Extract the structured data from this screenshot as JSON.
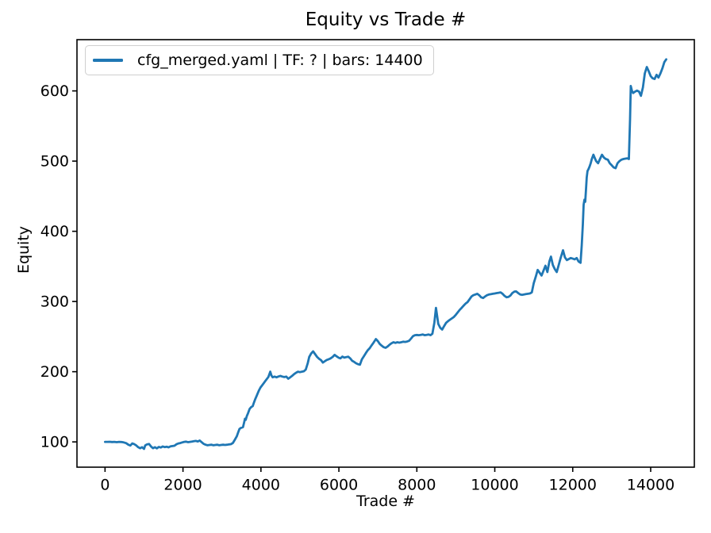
{
  "figure": {
    "title": "Equity vs Trade #",
    "background": "#ffffff"
  },
  "legend": {
    "label": "cfg_merged.yaml | TF: ? | bars: 14400",
    "line_color": "#1f77b4"
  },
  "chart_data": {
    "type": "line",
    "title": "Equity vs Trade #",
    "xlabel": "Trade #",
    "ylabel": "Equity",
    "x_ticks": [
      0,
      2000,
      4000,
      6000,
      8000,
      10000,
      12000,
      14000
    ],
    "y_ticks": [
      100,
      200,
      300,
      400,
      500,
      600
    ],
    "xlim": [
      -720,
      15120
    ],
    "ylim": [
      64,
      673
    ],
    "grid": false,
    "legend_position": "upper left",
    "line_color": "#1f77b4",
    "frame_color": "#000000",
    "series": [
      {
        "name": "cfg_merged.yaml | TF: ? | bars: 14400",
        "points": [
          [
            0,
            100
          ],
          [
            60,
            100
          ],
          [
            120,
            100.2
          ],
          [
            180,
            99.8
          ],
          [
            240,
            100
          ],
          [
            300,
            99.6
          ],
          [
            360,
            100
          ],
          [
            420,
            99.8
          ],
          [
            480,
            99.2
          ],
          [
            540,
            98.2
          ],
          [
            600,
            96
          ],
          [
            650,
            94.8
          ],
          [
            700,
            97.8
          ],
          [
            750,
            96.8
          ],
          [
            800,
            95
          ],
          [
            850,
            92.5
          ],
          [
            900,
            91
          ],
          [
            950,
            92.5
          ],
          [
            1000,
            90
          ],
          [
            1030,
            95
          ],
          [
            1080,
            96.5
          ],
          [
            1130,
            97
          ],
          [
            1180,
            93.5
          ],
          [
            1230,
            91
          ],
          [
            1280,
            92.5
          ],
          [
            1330,
            90.8
          ],
          [
            1380,
            92.8
          ],
          [
            1430,
            92
          ],
          [
            1480,
            93.5
          ],
          [
            1530,
            92.6
          ],
          [
            1580,
            93.2
          ],
          [
            1630,
            92.2
          ],
          [
            1680,
            93.6
          ],
          [
            1730,
            94
          ],
          [
            1780,
            94.5
          ],
          [
            1830,
            96.5
          ],
          [
            1880,
            97.8
          ],
          [
            1930,
            98.3
          ],
          [
            1980,
            99.2
          ],
          [
            2030,
            100
          ],
          [
            2080,
            100.4
          ],
          [
            2130,
            99.6
          ],
          [
            2180,
            100
          ],
          [
            2230,
            100.5
          ],
          [
            2280,
            101
          ],
          [
            2330,
            101.4
          ],
          [
            2380,
            100.6
          ],
          [
            2430,
            102
          ],
          [
            2480,
            99.5
          ],
          [
            2530,
            97.2
          ],
          [
            2580,
            96
          ],
          [
            2630,
            95.2
          ],
          [
            2680,
            95.6
          ],
          [
            2730,
            96
          ],
          [
            2780,
            95.2
          ],
          [
            2830,
            95.6
          ],
          [
            2880,
            96
          ],
          [
            2930,
            95.2
          ],
          [
            2980,
            95.6
          ],
          [
            3030,
            96
          ],
          [
            3080,
            95.6
          ],
          [
            3130,
            96
          ],
          [
            3180,
            96.4
          ],
          [
            3230,
            96.8
          ],
          [
            3280,
            98.5
          ],
          [
            3330,
            103
          ],
          [
            3380,
            108
          ],
          [
            3420,
            114
          ],
          [
            3450,
            118.5
          ],
          [
            3490,
            120
          ],
          [
            3540,
            121
          ],
          [
            3570,
            128
          ],
          [
            3590,
            133
          ],
          [
            3610,
            131.5
          ],
          [
            3640,
            137
          ],
          [
            3670,
            141
          ],
          [
            3710,
            147
          ],
          [
            3750,
            149.5
          ],
          [
            3790,
            151
          ],
          [
            3820,
            156
          ],
          [
            3850,
            160.5
          ],
          [
            3890,
            165.5
          ],
          [
            3920,
            169.5
          ],
          [
            3950,
            173.5
          ],
          [
            3990,
            177.5
          ],
          [
            4030,
            180.5
          ],
          [
            4070,
            183.5
          ],
          [
            4110,
            186.5
          ],
          [
            4150,
            189.5
          ],
          [
            4190,
            192.5
          ],
          [
            4240,
            200
          ],
          [
            4270,
            194.5
          ],
          [
            4300,
            192
          ],
          [
            4350,
            193
          ],
          [
            4400,
            192
          ],
          [
            4450,
            193.2
          ],
          [
            4500,
            194
          ],
          [
            4550,
            193
          ],
          [
            4600,
            192.4
          ],
          [
            4650,
            193
          ],
          [
            4700,
            190
          ],
          [
            4750,
            192
          ],
          [
            4800,
            194
          ],
          [
            4850,
            196.5
          ],
          [
            4900,
            198.5
          ],
          [
            4950,
            200
          ],
          [
            5000,
            199.4
          ],
          [
            5050,
            200
          ],
          [
            5100,
            200.6
          ],
          [
            5150,
            203
          ],
          [
            5200,
            212
          ],
          [
            5240,
            221
          ],
          [
            5290,
            226
          ],
          [
            5340,
            229
          ],
          [
            5390,
            225
          ],
          [
            5440,
            221
          ],
          [
            5490,
            218.5
          ],
          [
            5540,
            216.5
          ],
          [
            5590,
            213
          ],
          [
            5640,
            215
          ],
          [
            5690,
            216.8
          ],
          [
            5740,
            217.8
          ],
          [
            5790,
            219
          ],
          [
            5840,
            221
          ],
          [
            5890,
            224
          ],
          [
            5940,
            222
          ],
          [
            5990,
            220
          ],
          [
            6040,
            219
          ],
          [
            6090,
            221.5
          ],
          [
            6140,
            220
          ],
          [
            6190,
            220.8
          ],
          [
            6240,
            221.4
          ],
          [
            6290,
            219
          ],
          [
            6340,
            215.5
          ],
          [
            6390,
            214
          ],
          [
            6440,
            212
          ],
          [
            6490,
            210.8
          ],
          [
            6540,
            210
          ],
          [
            6590,
            217.5
          ],
          [
            6640,
            222
          ],
          [
            6690,
            226.5
          ],
          [
            6740,
            230.5
          ],
          [
            6790,
            233.5
          ],
          [
            6840,
            237.5
          ],
          [
            6890,
            241.5
          ],
          [
            6950,
            246.5
          ],
          [
            7000,
            243.5
          ],
          [
            7050,
            239.5
          ],
          [
            7100,
            237
          ],
          [
            7150,
            235
          ],
          [
            7200,
            234
          ],
          [
            7250,
            236
          ],
          [
            7300,
            238.5
          ],
          [
            7350,
            240.5
          ],
          [
            7400,
            242
          ],
          [
            7450,
            241
          ],
          [
            7500,
            242
          ],
          [
            7550,
            241.4
          ],
          [
            7600,
            242
          ],
          [
            7650,
            242.8
          ],
          [
            7700,
            242.4
          ],
          [
            7750,
            243
          ],
          [
            7800,
            244
          ],
          [
            7850,
            247
          ],
          [
            7900,
            250.5
          ],
          [
            7950,
            252
          ],
          [
            8000,
            252.4
          ],
          [
            8050,
            252
          ],
          [
            8100,
            252.5
          ],
          [
            8150,
            253
          ],
          [
            8200,
            252
          ],
          [
            8250,
            252.5
          ],
          [
            8300,
            253
          ],
          [
            8350,
            252
          ],
          [
            8400,
            254
          ],
          [
            8450,
            270
          ],
          [
            8490,
            291
          ],
          [
            8520,
            280
          ],
          [
            8550,
            268
          ],
          [
            8600,
            262.5
          ],
          [
            8650,
            260
          ],
          [
            8700,
            265
          ],
          [
            8750,
            269.5
          ],
          [
            8800,
            272
          ],
          [
            8850,
            274
          ],
          [
            8900,
            276
          ],
          [
            8950,
            278
          ],
          [
            9000,
            281
          ],
          [
            9050,
            284.5
          ],
          [
            9100,
            288
          ],
          [
            9150,
            291
          ],
          [
            9200,
            294
          ],
          [
            9250,
            297
          ],
          [
            9300,
            299
          ],
          [
            9350,
            303
          ],
          [
            9400,
            307
          ],
          [
            9450,
            309
          ],
          [
            9500,
            310
          ],
          [
            9550,
            311
          ],
          [
            9600,
            309
          ],
          [
            9650,
            306
          ],
          [
            9700,
            305
          ],
          [
            9750,
            307
          ],
          [
            9800,
            309
          ],
          [
            9850,
            310
          ],
          [
            9900,
            310.4
          ],
          [
            9950,
            311
          ],
          [
            10000,
            311.4
          ],
          [
            10050,
            312
          ],
          [
            10100,
            312.5
          ],
          [
            10150,
            313
          ],
          [
            10200,
            311
          ],
          [
            10250,
            308
          ],
          [
            10300,
            306
          ],
          [
            10350,
            306.5
          ],
          [
            10400,
            308.5
          ],
          [
            10450,
            312
          ],
          [
            10500,
            314
          ],
          [
            10550,
            314.4
          ],
          [
            10600,
            312
          ],
          [
            10650,
            310
          ],
          [
            10700,
            309.5
          ],
          [
            10750,
            310
          ],
          [
            10800,
            310.5
          ],
          [
            10850,
            311
          ],
          [
            10900,
            311.4
          ],
          [
            10950,
            313
          ],
          [
            11000,
            326
          ],
          [
            11050,
            335
          ],
          [
            11100,
            345
          ],
          [
            11150,
            341
          ],
          [
            11200,
            337
          ],
          [
            11250,
            344
          ],
          [
            11300,
            351
          ],
          [
            11350,
            342
          ],
          [
            11400,
            357
          ],
          [
            11440,
            364
          ],
          [
            11490,
            352
          ],
          [
            11540,
            346
          ],
          [
            11590,
            342
          ],
          [
            11640,
            352
          ],
          [
            11690,
            362
          ],
          [
            11750,
            373
          ],
          [
            11800,
            363
          ],
          [
            11850,
            359
          ],
          [
            11900,
            360.5
          ],
          [
            11950,
            362
          ],
          [
            12000,
            361
          ],
          [
            12050,
            360
          ],
          [
            12100,
            362
          ],
          [
            12150,
            357
          ],
          [
            12200,
            355
          ],
          [
            12230,
            380
          ],
          [
            12260,
            410
          ],
          [
            12280,
            438
          ],
          [
            12300,
            445
          ],
          [
            12320,
            442
          ],
          [
            12340,
            460
          ],
          [
            12360,
            477
          ],
          [
            12380,
            486
          ],
          [
            12400,
            488
          ],
          [
            12430,
            492
          ],
          [
            12460,
            497
          ],
          [
            12490,
            503
          ],
          [
            12530,
            509
          ],
          [
            12560,
            505
          ],
          [
            12600,
            500
          ],
          [
            12650,
            497
          ],
          [
            12700,
            503
          ],
          [
            12750,
            509
          ],
          [
            12800,
            505
          ],
          [
            12850,
            503
          ],
          [
            12900,
            502
          ],
          [
            12950,
            497
          ],
          [
            13000,
            494
          ],
          [
            13050,
            491
          ],
          [
            13100,
            490
          ],
          [
            13150,
            497
          ],
          [
            13200,
            500
          ],
          [
            13250,
            502
          ],
          [
            13300,
            503
          ],
          [
            13350,
            503.5
          ],
          [
            13400,
            504
          ],
          [
            13440,
            503
          ],
          [
            13470,
            560
          ],
          [
            13490,
            607
          ],
          [
            13520,
            600
          ],
          [
            13550,
            597
          ],
          [
            13600,
            599
          ],
          [
            13650,
            600.5
          ],
          [
            13700,
            599
          ],
          [
            13750,
            593
          ],
          [
            13800,
            605
          ],
          [
            13850,
            625
          ],
          [
            13900,
            634
          ],
          [
            13950,
            628
          ],
          [
            14000,
            621
          ],
          [
            14050,
            618
          ],
          [
            14100,
            617
          ],
          [
            14150,
            623
          ],
          [
            14200,
            619
          ],
          [
            14250,
            625
          ],
          [
            14300,
            632
          ],
          [
            14350,
            641
          ],
          [
            14400,
            645
          ]
        ]
      }
    ]
  }
}
